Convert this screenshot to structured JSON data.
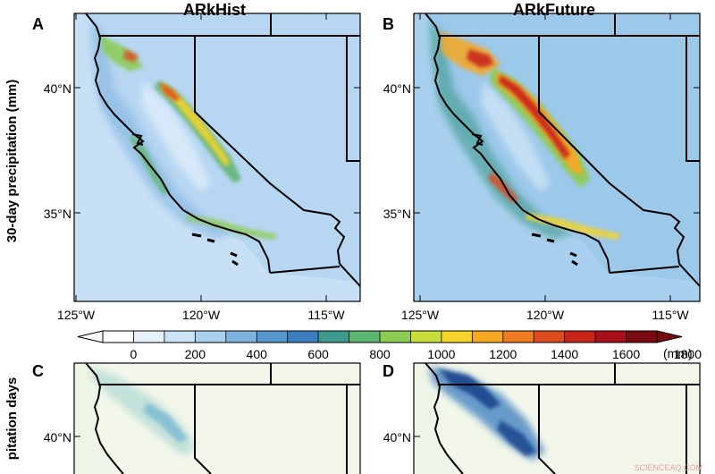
{
  "panels": [
    {
      "letter": "A",
      "title": "ARkHist"
    },
    {
      "letter": "B",
      "title": "ARkFuture"
    },
    {
      "letter": "C",
      "title": ""
    },
    {
      "letter": "D",
      "title": ""
    }
  ],
  "ylabel_top": "30-day precipitation (mm)",
  "ylabel_bottom": "pitation days",
  "lat_labels": [
    "40°N",
    "35°N"
  ],
  "lon_labels": [
    "125°W",
    "120°W",
    "115°W"
  ],
  "colorbar": {
    "ticks": [
      "0",
      "200",
      "400",
      "600",
      "800",
      "1000",
      "1200",
      "1400",
      "1600",
      "1800"
    ],
    "unit": "(mm)",
    "colors": [
      "#ffffff",
      "#e6f1fb",
      "#cbe3f6",
      "#a9d0ee",
      "#7fb3df",
      "#5795cd",
      "#3b7dbf",
      "#3e9a8e",
      "#5bb46f",
      "#8ccc52",
      "#c8dc3a",
      "#f5d32a",
      "#f7a823",
      "#ee7a20",
      "#dd4a1c",
      "#c8251a",
      "#a90f1a",
      "#7a0a12"
    ]
  },
  "watermark": "SCIENCEAQ.COM"
}
